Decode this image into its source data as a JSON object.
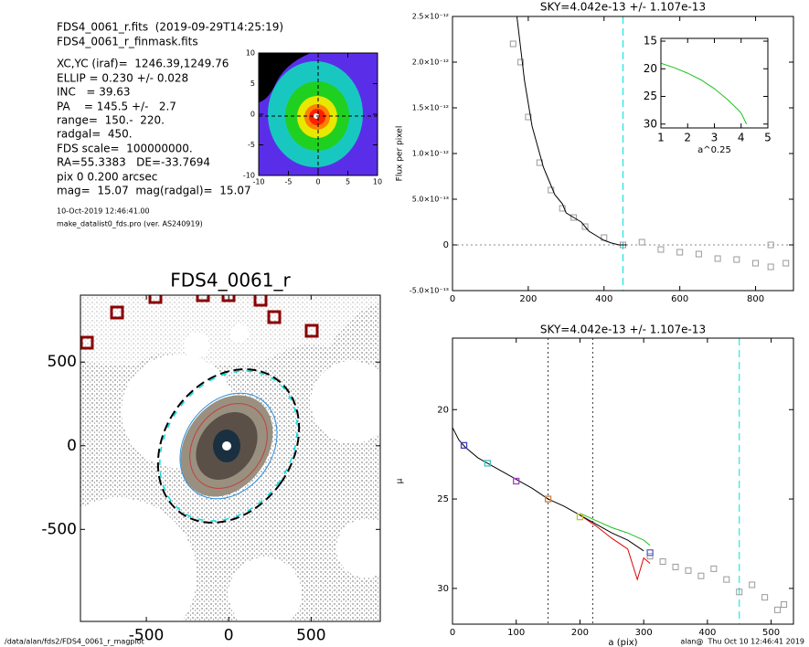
{
  "header": {
    "lines": [
      "FDS4_0061_r.fits  (2019-09-29T14:25:19)",
      "FDS4_0061_r_finmask.fits"
    ],
    "params": [
      "XC,YC (iraf)=  1246.39,1249.76",
      "ELLIP = 0.230 +/- 0.028",
      "INC   = 39.63",
      "PA    = 145.5 +/-   2.7",
      "range=  150.-  220.",
      "radgal=  450.",
      "FDS scale=  100000000.",
      "RA=55.3383   DE=-33.7694",
      "pix 0 0.200 arcsec",
      "mag=  15.07  mag(radgal)=  15.07"
    ],
    "notes": [
      "10-Oct-2019 12:46:41.00",
      "make_datalist0_fds.pro (ver. AS240919)"
    ]
  },
  "footer": {
    "left": "/data/alan/fds2/FDS4_0061_r_magplot",
    "right": "alan@  Thu Oct 10 12:46:41 2019"
  },
  "chart_data": [
    {
      "type": "image",
      "xlim": [
        -10,
        10
      ],
      "ylim": [
        -10,
        10
      ],
      "xticks": [
        -10,
        -5,
        0,
        5,
        10
      ],
      "yticks": [
        -10,
        -5,
        0,
        5,
        10
      ]
    },
    {
      "type": "image",
      "title": "FDS4_0061_r",
      "xlim": [
        -900,
        920
      ],
      "ylim": [
        -1050,
        900
      ],
      "xticks": [
        -500,
        0,
        500
      ],
      "yticks": [
        -500,
        0,
        500
      ]
    },
    {
      "type": "line",
      "title": "SKY=4.042e-13 +/- 1.107e-13",
      "y_label": "Flux per pixel",
      "xlim": [
        0,
        900
      ],
      "xticks": [
        0,
        200,
        400,
        600,
        800
      ],
      "ylim": [
        -5e-13,
        2.5e-12
      ],
      "yticks": [
        {
          "value": -5e-13,
          "label": "-5.0×10⁻¹³"
        },
        0,
        {
          "value": 5e-13,
          "label": "5.0×10⁻¹³"
        },
        {
          "value": 1e-12,
          "label": "1.0×10⁻¹²"
        },
        {
          "value": 1.5e-12,
          "label": "1.5×10⁻¹²"
        },
        {
          "value": 2e-12,
          "label": "2.0×10⁻¹²"
        },
        {
          "value": 2.5e-12,
          "label": "2.5×10⁻¹²"
        }
      ],
      "hlines": [
        {
          "value": 0,
          "color": "#888888",
          "style": "dot"
        }
      ],
      "vlines": [
        {
          "value": 450,
          "color": "#00e0e0",
          "style": "dash"
        }
      ],
      "series": [
        {
          "color": "#9a9a9a",
          "marker": "square",
          "x": [
            160,
            180,
            200,
            230,
            260,
            290,
            320,
            350,
            400,
            450,
            500,
            550,
            600,
            650,
            700,
            750,
            800,
            840,
            840,
            880
          ],
          "values": [
            2.2e-12,
            2e-12,
            1.4e-12,
            9e-13,
            6e-13,
            4e-13,
            3e-13,
            2e-13,
            8e-14,
            0,
            3e-14,
            -5e-14,
            -8e-14,
            -1e-13,
            -1.5e-13,
            -1.6e-13,
            -2e-13,
            0,
            -2.4e-13,
            -2e-13
          ]
        },
        {
          "color": "#000000",
          "x": [
            170,
            180,
            190,
            200,
            210,
            220,
            230,
            240,
            250,
            260,
            270,
            280,
            290,
            300,
            320,
            340,
            360,
            380,
            400,
            420,
            440,
            460
          ],
          "values": [
            2.5e-12,
            2.15e-12,
            1.8e-12,
            1.55e-12,
            1.3e-12,
            1.15e-12,
            1e-12,
            8.5e-13,
            7.5e-13,
            6.5e-13,
            5.5e-13,
            5e-13,
            4.5e-13,
            3.5e-13,
            3e-13,
            2.5e-13,
            1.5e-13,
            1e-13,
            5e-14,
            2e-14,
            0,
            0
          ]
        }
      ]
    },
    {
      "type": "line",
      "x_label": "a^0.25",
      "xlim": [
        1,
        5
      ],
      "xticks": [
        1,
        2,
        3,
        4,
        5
      ],
      "ylim": [
        30.7,
        14.5
      ],
      "yticks": [
        15,
        20,
        25,
        30
      ],
      "series": [
        {
          "color": "#20c020",
          "x": [
            1,
            1.5,
            2,
            2.5,
            3,
            3.5,
            3.8,
            4,
            4.2
          ],
          "values": [
            19,
            19.8,
            20.8,
            22,
            23.6,
            25.6,
            27,
            28,
            30
          ]
        }
      ]
    },
    {
      "type": "line",
      "title": "SKY=4.042e-13 +/- 1.107e-13",
      "x_label": "a (pix)",
      "y_label": "μ",
      "xlim": [
        0,
        535
      ],
      "xticks": [
        0,
        100,
        200,
        300,
        400,
        500
      ],
      "ylim": [
        32,
        16
      ],
      "yticks": [
        20,
        25,
        30
      ],
      "vlines": [
        {
          "value": 150,
          "color": "#333333",
          "style": "dot"
        },
        {
          "value": 220,
          "color": "#333333",
          "style": "dot"
        },
        {
          "value": 450,
          "color": "#00e0e0",
          "style": "dash"
        }
      ],
      "series": [
        {
          "color": "#9a9a9a",
          "marker": "square",
          "x": [
            310,
            330,
            350,
            370,
            390,
            410,
            430,
            450,
            470,
            490,
            510,
            520
          ],
          "values": [
            28.2,
            28.5,
            28.8,
            29,
            29.3,
            28.9,
            29.5,
            30.2,
            29.8,
            30.5,
            31.2,
            30.9
          ]
        },
        {
          "color": "#e00000",
          "x": [
            200,
            225,
            250,
            275,
            290,
            300,
            310
          ],
          "values": [
            25.9,
            26.5,
            27.2,
            27.8,
            29.5,
            28.3,
            28.6
          ]
        },
        {
          "color": "#20c020",
          "x": [
            200,
            225,
            250,
            275,
            300,
            310
          ],
          "values": [
            25.8,
            26.2,
            26.6,
            26.9,
            27.3,
            27.6
          ]
        },
        {
          "color": "#000000",
          "x": [
            0,
            10,
            20,
            40,
            60,
            80,
            100,
            125,
            150,
            175,
            200,
            225,
            250,
            275,
            300
          ],
          "values": [
            21,
            21.7,
            22.1,
            22.7,
            23.1,
            23.5,
            23.9,
            24.4,
            25,
            25.4,
            25.9,
            26.4,
            26.9,
            27.3,
            27.9
          ]
        },
        {
          "marker": "square",
          "colors": [
            "#4040c0",
            "#40c0c0",
            "#a040c0",
            "#d08040",
            "#c0c040",
            "#6060c0"
          ],
          "x": [
            18,
            55,
            100,
            150,
            200,
            310
          ],
          "values": [
            22,
            23,
            24,
            25,
            26,
            28
          ]
        }
      ]
    }
  ]
}
